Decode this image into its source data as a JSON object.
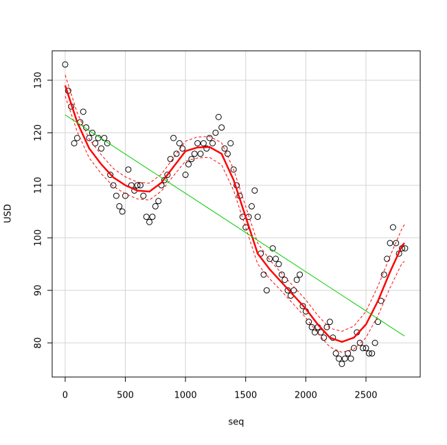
{
  "chart_data": {
    "type": "scatter",
    "xlabel": "seq",
    "ylabel": "USD",
    "xlim": [
      -108,
      2951
    ],
    "ylim": [
      73.5,
      135.6
    ],
    "xticks": [
      0,
      500,
      1000,
      1500,
      2000,
      2500
    ],
    "yticks": [
      80,
      90,
      100,
      110,
      120,
      130
    ],
    "grid": true,
    "series": [
      {
        "style": "points",
        "color": "#000000",
        "x": [
          0,
          25,
          50,
          75,
          100,
          125,
          150,
          175,
          200,
          225,
          250,
          275,
          300,
          325,
          350,
          375,
          400,
          425,
          450,
          475,
          500,
          525,
          550,
          575,
          600,
          625,
          650,
          675,
          700,
          725,
          750,
          775,
          800,
          825,
          850,
          875,
          900,
          925,
          950,
          975,
          1000,
          1025,
          1050,
          1075,
          1100,
          1125,
          1150,
          1175,
          1200,
          1225,
          1250,
          1275,
          1300,
          1325,
          1350,
          1375,
          1400,
          1425,
          1450,
          1475,
          1500,
          1525,
          1550,
          1575,
          1600,
          1625,
          1650,
          1675,
          1700,
          1725,
          1750,
          1775,
          1800,
          1825,
          1850,
          1875,
          1900,
          1925,
          1950,
          1975,
          2000,
          2025,
          2050,
          2075,
          2100,
          2125,
          2150,
          2175,
          2200,
          2225,
          2250,
          2275,
          2300,
          2325,
          2350,
          2375,
          2400,
          2425,
          2450,
          2475,
          2500,
          2525,
          2550,
          2575,
          2600,
          2625,
          2650,
          2675,
          2700,
          2725,
          2750,
          2775,
          2800,
          2825
        ],
        "values": [
          133,
          128,
          125,
          118,
          119,
          122,
          124,
          121,
          119,
          120,
          118,
          119,
          117,
          119,
          118,
          112,
          110,
          108,
          106,
          105,
          108,
          113,
          110,
          109,
          110,
          110,
          108,
          104,
          103,
          104,
          106,
          107,
          110,
          111,
          112,
          115,
          119,
          116,
          118,
          117,
          112,
          114,
          115,
          116,
          118,
          116,
          118,
          117,
          119,
          118,
          120,
          123,
          121,
          117,
          116,
          118,
          113,
          110,
          108,
          104,
          102,
          104,
          106,
          109,
          104,
          97,
          93,
          90,
          96,
          98,
          96,
          95,
          93,
          92,
          90,
          89,
          90,
          92,
          93,
          87,
          86,
          84,
          83,
          82,
          83,
          82,
          81,
          83,
          84,
          81,
          78,
          77,
          76,
          77,
          78,
          77,
          79,
          82,
          80,
          79,
          79,
          78,
          78,
          80,
          84,
          88,
          93,
          96,
          99,
          102,
          99,
          97,
          98,
          98
        ]
      },
      {
        "style": "fit",
        "color": "#ff0000",
        "x": [
          0,
          100,
          200,
          300,
          400,
          500,
          600,
          700,
          800,
          900,
          1000,
          1100,
          1200,
          1300,
          1400,
          1500,
          1600,
          1700,
          1800,
          1900,
          2000,
          2100,
          2200,
          2300,
          2400,
          2500,
          2600,
          2700,
          2800,
          2820
        ],
        "values": [
          129,
          122,
          117,
          114,
          111.5,
          110,
          109,
          108.8,
          110.5,
          113.5,
          116.5,
          117.2,
          117.3,
          116,
          111,
          104,
          97,
          94,
          91.5,
          89,
          86.5,
          83.5,
          81,
          80.2,
          81,
          83.5,
          88,
          93.5,
          98.5,
          99
        ]
      },
      {
        "style": "band",
        "color": "#ff0000",
        "x": [
          0,
          100,
          200,
          300,
          400,
          500,
          600,
          700,
          800,
          900,
          1000,
          1100,
          1200,
          1300,
          1400,
          1500,
          1600,
          1700,
          1800,
          1900,
          2000,
          2100,
          2200,
          2300,
          2400,
          2500,
          2600,
          2700,
          2800,
          2820
        ],
        "values": [
          131,
          123.8,
          118.8,
          115.8,
          113.2,
          111.6,
          110.6,
          110.4,
          112.1,
          115.2,
          118.4,
          119.2,
          119.3,
          118.1,
          113,
          106,
          99,
          95.8,
          93.2,
          90.7,
          88.2,
          85.2,
          82.8,
          82.2,
          83.2,
          86,
          90.8,
          96.5,
          101.8,
          102.5
        ]
      },
      {
        "style": "band",
        "color": "#ff0000",
        "x": [
          0,
          100,
          200,
          300,
          400,
          500,
          600,
          700,
          800,
          900,
          1000,
          1100,
          1200,
          1300,
          1400,
          1500,
          1600,
          1700,
          1800,
          1900,
          2000,
          2100,
          2200,
          2300,
          2400,
          2500,
          2600,
          2700,
          2800,
          2820
        ],
        "values": [
          127,
          120.2,
          115.2,
          112.2,
          109.8,
          108.4,
          107.4,
          107.2,
          108.9,
          111.8,
          114.6,
          115.2,
          115.3,
          113.9,
          109,
          102,
          95,
          92.2,
          89.8,
          87.3,
          84.8,
          81.8,
          79.2,
          78.2,
          78.8,
          81,
          85.2,
          90.5,
          95.2,
          95.5
        ]
      },
      {
        "style": "trend",
        "color": "#00cc00",
        "x": [
          0,
          2820
        ],
        "values": [
          123.4,
          81.3
        ]
      }
    ]
  }
}
